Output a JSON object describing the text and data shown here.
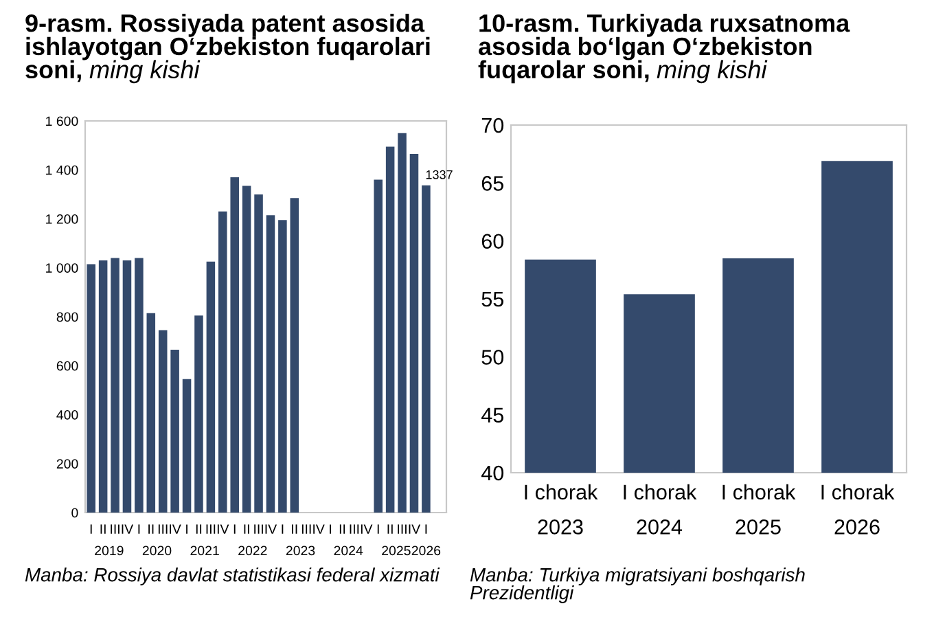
{
  "chart_data": [
    {
      "type": "bar",
      "title": "9-rasm. Rossiyada patent asosida ishlayotgan O‘zbekiston fuqarolari soni,",
      "subtitle": "ming kishi",
      "categories": [
        "I",
        "II",
        "III",
        "IV",
        "I",
        "II",
        "III",
        "IV",
        "I",
        "II",
        "III",
        "IV",
        "I",
        "II",
        "III",
        "IV",
        "I",
        "II",
        "III",
        "IV",
        "I",
        "II",
        "III",
        "IV",
        "I",
        "II",
        "III",
        "IV",
        "I"
      ],
      "values": [
        1015,
        1030,
        1040,
        1030,
        1040,
        815,
        745,
        665,
        545,
        805,
        1025,
        1230,
        1370,
        1335,
        1300,
        1215,
        1195,
        1285,
        null,
        null,
        null,
        null,
        null,
        null,
        1360,
        1495,
        1550,
        1465,
        1337
      ],
      "value_labels": [
        null,
        null,
        null,
        null,
        null,
        null,
        null,
        null,
        null,
        null,
        null,
        null,
        null,
        null,
        null,
        null,
        null,
        null,
        null,
        null,
        null,
        null,
        null,
        null,
        null,
        null,
        null,
        null,
        "1337"
      ],
      "color": "#344a6c",
      "ylim": [
        0,
        1600
      ],
      "yticks": [
        0,
        200,
        400,
        600,
        800,
        {
          "value": 1000,
          "label": "1 000"
        },
        {
          "value": 1200,
          "label": "1 200"
        },
        {
          "value": 1400,
          "label": "1 400"
        },
        {
          "value": 1600,
          "label": "1 600"
        }
      ],
      "annotations": [
        "2019",
        "2020",
        "2021",
        "2022",
        "2023",
        "2024",
        "2025",
        "2026",
        "Manba: Rossiya davlat statistikasi federal xizmati"
      ]
    },
    {
      "type": "bar",
      "title": "10-rasm. Turkiyada ruxsatnoma asosida bo‘lgan O‘zbekiston fuqarolar soni,",
      "subtitle": "ming kishi",
      "categories": [
        "I chorak\n2023",
        "I chorak\n2024",
        "I chorak\n2025",
        "I chorak\n2026"
      ],
      "values": [
        58.4,
        55.4,
        58.5,
        66.9
      ],
      "color": "#344a6c",
      "ylim": [
        40,
        70
      ],
      "yticks": [
        40,
        45,
        50,
        55,
        60,
        65,
        70
      ],
      "annotations": [
        "Manba: Turkiya migratsiyani boshqarish Prezidentligi"
      ]
    }
  ]
}
